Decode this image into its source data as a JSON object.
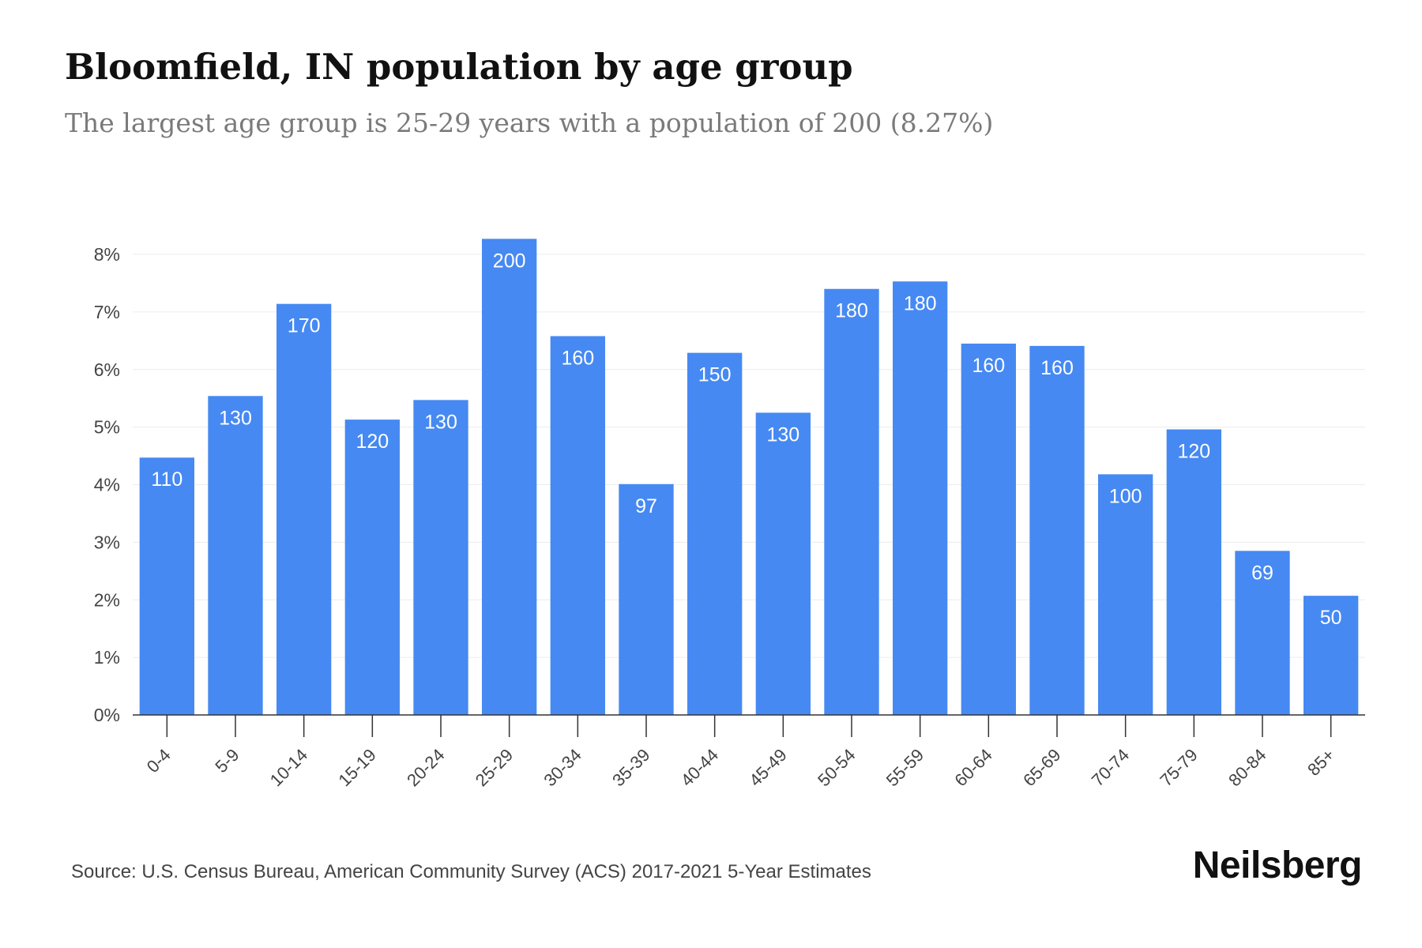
{
  "header": {
    "title": "Bloomfield, IN population by age group",
    "subtitle": "The largest age group is 25-29 years with a population of 200 (8.27%)"
  },
  "footer": {
    "source": "Source: U.S. Census Bureau, American Community Survey (ACS) 2017-2021 5-Year Estimates",
    "brand": "Neilsberg"
  },
  "colors": {
    "bar": "#4689f2",
    "grid": "#ececec",
    "axis": "#333333"
  },
  "chart_data": {
    "type": "bar",
    "title": "Bloomfield, IN population by age group",
    "subtitle": "The largest age group is 25-29 years with a population of 200 (8.27%)",
    "xlabel": "",
    "ylabel": "",
    "ylim": [
      0,
      8
    ],
    "y_tick_values": [
      0,
      1,
      2,
      3,
      4,
      5,
      6,
      7,
      8
    ],
    "y_tick_labels": [
      "0%",
      "1%",
      "2%",
      "3%",
      "4%",
      "5%",
      "6%",
      "7%",
      "8%"
    ],
    "grid": true,
    "categories": [
      "0-4",
      "5-9",
      "10-14",
      "15-19",
      "20-24",
      "25-29",
      "30-34",
      "35-39",
      "40-44",
      "45-49",
      "50-54",
      "55-59",
      "60-64",
      "65-69",
      "70-74",
      "75-79",
      "80-84",
      "85+"
    ],
    "values": [
      4.47,
      5.54,
      7.14,
      5.13,
      5.47,
      8.27,
      6.58,
      4.01,
      6.29,
      5.25,
      7.4,
      7.53,
      6.45,
      6.41,
      4.18,
      4.96,
      2.85,
      2.07
    ],
    "data_labels": [
      "110",
      "130",
      "170",
      "120",
      "130",
      "200",
      "160",
      "97",
      "150",
      "130",
      "180",
      "180",
      "160",
      "160",
      "100",
      "120",
      "69",
      "50"
    ]
  }
}
